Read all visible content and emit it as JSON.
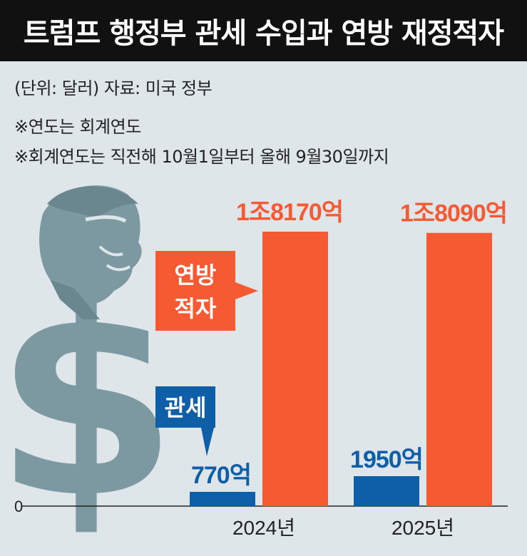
{
  "title": "트럼프 행정부 관세 수입과 연방 재정적자",
  "unit_source": "(단위: 달러)   자료: 미국 정부",
  "notes": [
    "※연도는 회계연도",
    "※회계연도는 직전해 10월1일부터 올해 9월30일까지"
  ],
  "colors": {
    "deficit": "#f55a33",
    "tariff": "#0f5ea8",
    "illustration": "#7c99a1"
  },
  "icons": [
    "dollar-sign-icon",
    "trump-portrait-icon"
  ],
  "chart_data": {
    "type": "bar",
    "categories": [
      "2024년",
      "2025년"
    ],
    "series": [
      {
        "name": "관세",
        "values": [
          770,
          1950
        ],
        "labels": [
          "770억",
          "1950억"
        ]
      },
      {
        "name": "연방 적자",
        "values": [
          18170,
          18090
        ],
        "labels": [
          "1조8170억",
          "1조8090억"
        ]
      }
    ],
    "callouts": {
      "deficit": [
        "연방",
        "적자"
      ],
      "tariff": "관세"
    },
    "zero_label": "0",
    "ylim": [
      0,
      18170
    ]
  }
}
